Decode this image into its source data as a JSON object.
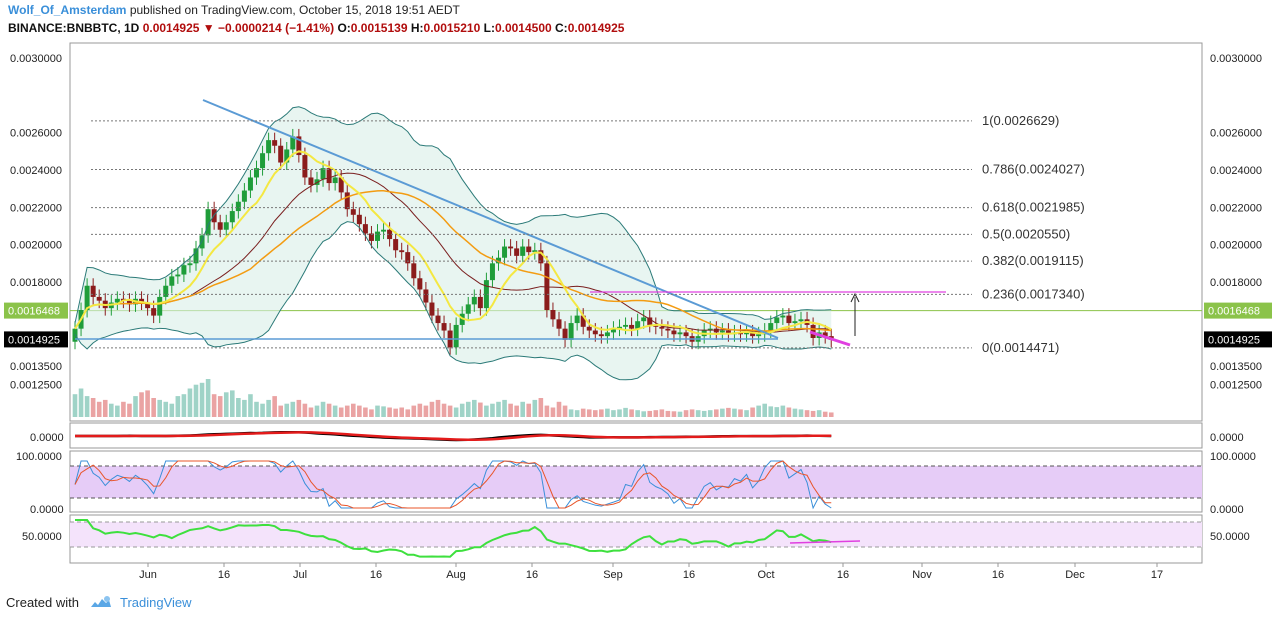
{
  "header": {
    "author": "Wolf_Of_Amsterdam",
    "published": "published on TradingView.com, October 15, 2018 19:51 AEDT",
    "symbol": "BINANCE:BNBBTC, 1D",
    "last": "0.0014925",
    "change": "−0.0000214 (−1.41%)",
    "o_label": "O:",
    "o": "0.0015139",
    "h_label": "H:",
    "h": "0.0015210",
    "l_label": "L:",
    "l": "0.0014500",
    "c_label": "C:",
    "c": "0.0014925"
  },
  "footer": {
    "created": "Created with",
    "brand": "TradingView"
  },
  "colors": {
    "up": "#26a69a",
    "candle_up": "#1f9d3a",
    "candle_down": "#8b1c1c",
    "fib": "#777777",
    "trend": "#5b9bd5",
    "pink": "#e040e0",
    "green_level": "#8bc34a",
    "vol_up": "#9fd3c7",
    "vol_down": "#eaa3a3"
  },
  "chart_data": {
    "type": "candlestick",
    "ylim": [
      0.0011,
      0.0031
    ],
    "y_ticks": [
      "0.0030000",
      "0.0026000",
      "0.0024000",
      "0.0022000",
      "0.0020000",
      "0.0018000",
      "0.0013500",
      "0.0012500"
    ],
    "x_ticks": [
      "Jun",
      "16",
      "Jul",
      "16",
      "Aug",
      "16",
      "Sep",
      "16",
      "Oct",
      "16",
      "Nov",
      "16",
      "Dec",
      "17"
    ],
    "last_price_label": "0.0014925",
    "level_label": "0.0016468",
    "fib_levels": [
      {
        "label": "1(0.0026629)",
        "value": 0.0026629
      },
      {
        "label": "0.786(0.0024027)",
        "value": 0.0024027
      },
      {
        "label": "0.618(0.0021985)",
        "value": 0.0021985
      },
      {
        "label": "0.5(0.0020550)",
        "value": 0.002055
      },
      {
        "label": "0.382(0.0019115)",
        "value": 0.0019115
      },
      {
        "label": "0.236(0.0017340)",
        "value": 0.001734
      },
      {
        "label": "0(0.0014471)",
        "value": 0.0014471
      }
    ],
    "close": [
      0.00155,
      0.00165,
      0.00178,
      0.00172,
      0.0017,
      0.00166,
      0.00169,
      0.00171,
      0.0017,
      0.00168,
      0.00171,
      0.00169,
      0.00166,
      0.00162,
      0.00172,
      0.00178,
      0.00183,
      0.00184,
      0.00189,
      0.0019,
      0.00198,
      0.00205,
      0.00219,
      0.00212,
      0.00208,
      0.00212,
      0.00218,
      0.00223,
      0.00229,
      0.00236,
      0.00241,
      0.00249,
      0.00256,
      0.00253,
      0.00244,
      0.00251,
      0.00258,
      0.00248,
      0.00236,
      0.00232,
      0.00235,
      0.00241,
      0.00233,
      0.00236,
      0.00228,
      0.00219,
      0.00216,
      0.00211,
      0.00206,
      0.00202,
      0.00207,
      0.00208,
      0.00203,
      0.00197,
      0.00196,
      0.0019,
      0.00182,
      0.00176,
      0.00169,
      0.00162,
      0.00158,
      0.00154,
      0.00145,
      0.00157,
      0.00163,
      0.00168,
      0.00172,
      0.00166,
      0.00181,
      0.0019,
      0.00193,
      0.00199,
      0.00198,
      0.00194,
      0.00199,
      0.00196,
      0.00197,
      0.0019,
      0.00165,
      0.0016,
      0.00155,
      0.00149,
      0.00158,
      0.00162,
      0.00156,
      0.00154,
      0.00152,
      0.00151,
      0.00153,
      0.00155,
      0.00156,
      0.00157,
      0.00155,
      0.00159,
      0.00161,
      0.00157,
      0.00156,
      0.00155,
      0.00154,
      0.00152,
      0.00153,
      0.00151,
      0.00148,
      0.00151,
      0.00154,
      0.00155,
      0.00153,
      0.00154,
      0.00152,
      0.00153,
      0.00152,
      0.00153,
      0.00151,
      0.00152,
      0.00154,
      0.00158,
      0.00161,
      0.00162,
      0.00158,
      0.00159,
      0.0016,
      0.00157,
      0.0015,
      0.00153,
      0.00151,
      0.00149
    ],
    "volume": [
      60,
      75,
      55,
      50,
      40,
      45,
      35,
      30,
      40,
      35,
      55,
      65,
      70,
      50,
      45,
      40,
      35,
      55,
      60,
      75,
      85,
      90,
      100,
      60,
      55,
      65,
      70,
      50,
      45,
      60,
      40,
      35,
      45,
      55,
      30,
      35,
      40,
      45,
      35,
      25,
      30,
      40,
      35,
      30,
      25,
      30,
      35,
      30,
      25,
      20,
      30,
      28,
      25,
      22,
      25,
      20,
      30,
      35,
      30,
      40,
      45,
      35,
      30,
      25,
      35,
      40,
      45,
      38,
      30,
      35,
      40,
      45,
      35,
      30,
      40,
      35,
      45,
      50,
      30,
      25,
      40,
      30,
      20,
      18,
      22,
      20,
      18,
      20,
      22,
      18,
      20,
      24,
      20,
      18,
      15,
      16,
      18,
      20,
      16,
      15,
      14,
      18,
      20,
      18,
      16,
      18,
      20,
      22,
      24,
      22,
      20,
      18,
      25,
      30,
      35,
      28,
      26,
      30,
      25,
      22,
      20,
      18,
      16,
      18,
      14,
      12
    ],
    "volume_label_ticks": [
      "0.0013500",
      "0.0012500"
    ],
    "macd_ticks": [
      "0.0000"
    ],
    "stoch_ticks": [
      "100.0000",
      "0.0000"
    ],
    "rsi_ticks": [
      "50.0000"
    ]
  }
}
